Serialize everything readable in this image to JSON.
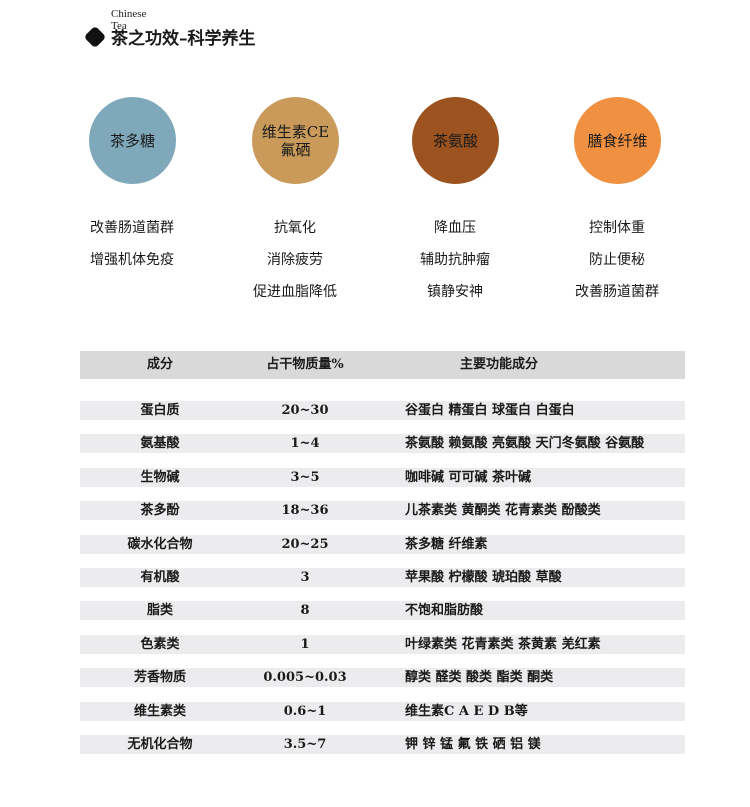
{
  "header": {
    "subtitle": "Chinese Tea",
    "title": "茶之功效–科学养生"
  },
  "components": [
    {
      "name": "茶多糖",
      "color": "#7fa8ba",
      "effects": [
        "改善肠道菌群",
        "增强机体免疫"
      ]
    },
    {
      "name": "维生素CE\n氟硒",
      "color": "#c99a5a",
      "effects": [
        "抗氧化",
        "消除疲劳",
        "促进血脂降低"
      ]
    },
    {
      "name": "茶氨酸",
      "color": "#9c531f",
      "effects": [
        "降血压",
        "辅助抗肿瘤",
        "镇静安神"
      ]
    },
    {
      "name": "膳食纤维",
      "color": "#ef9140",
      "effects": [
        "控制体重",
        "防止便秘",
        "改善肠道菌群"
      ]
    }
  ],
  "table": {
    "headers": [
      "成分",
      "占干物质量%",
      "主要功能成分"
    ],
    "rows": [
      [
        "蛋白质",
        "20~30",
        "谷蛋白 精蛋白 球蛋白 白蛋白"
      ],
      [
        "氨基酸",
        "1~4",
        "茶氨酸 赖氨酸 亮氨酸 天门冬氨酸 谷氨酸"
      ],
      [
        "生物碱",
        "3~5",
        "咖啡碱 可可碱 茶叶碱"
      ],
      [
        "茶多酚",
        "18~36",
        "儿茶素类 黄酮类 花青素类 酚酸类"
      ],
      [
        "碳水化合物",
        "20~25",
        "茶多糖 纤维素"
      ],
      [
        "有机酸",
        "3",
        "苹果酸 柠檬酸 琥珀酸 草酸"
      ],
      [
        "脂类",
        "8",
        "不饱和脂肪酸"
      ],
      [
        "色素类",
        "1",
        "叶绿素类 花青素类 茶黄素 羌红素"
      ],
      [
        "芳香物质",
        "0.005~0.03",
        "醇类 醛类 酸类 酯类 酮类"
      ],
      [
        "维生素类",
        "0.6~1",
        "维生素C A E D B等"
      ],
      [
        "无机化合物",
        "3.5~7",
        "钾 锌 锰 氟 铁 硒 铝 镁"
      ]
    ]
  }
}
